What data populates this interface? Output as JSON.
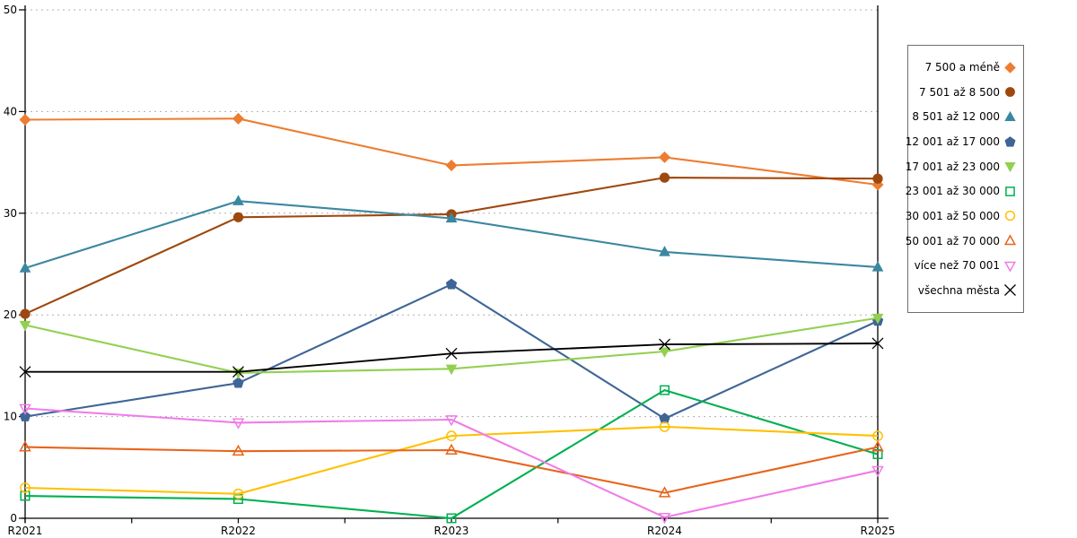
{
  "chart_data": {
    "type": "line",
    "title": "",
    "xlabel": "",
    "ylabel": "",
    "x_categories": [
      "R2021",
      "R2022",
      "R2023",
      "R2024",
      "R2025"
    ],
    "ylim": [
      0,
      50
    ],
    "yticks": [
      0,
      10,
      20,
      30,
      40,
      50
    ],
    "grid": "horizontal-dashed",
    "gridline_color": "#b0b0b0",
    "axis_color": "#000000",
    "legend_position": "right",
    "series": [
      {
        "name": "7 500 a méně",
        "color": "#ED7D31",
        "marker": "diamond",
        "fill": "filled",
        "values": [
          39.2,
          39.3,
          34.7,
          35.5,
          32.8
        ]
      },
      {
        "name": "7 501 až 8 500",
        "color": "#9E480E",
        "marker": "circle",
        "fill": "filled",
        "values": [
          20.1,
          29.6,
          29.9,
          33.5,
          33.4
        ]
      },
      {
        "name": "8 501 až 12 000",
        "color": "#3B87A0",
        "marker": "triangle-up",
        "fill": "filled",
        "values": [
          24.6,
          31.2,
          29.5,
          26.2,
          24.7
        ]
      },
      {
        "name": "12 001 až 17 000",
        "color": "#3E6596",
        "marker": "pentagon",
        "fill": "filled",
        "values": [
          10.0,
          13.3,
          23.0,
          9.8,
          19.4
        ]
      },
      {
        "name": "17 001 až 23 000",
        "color": "#92D050",
        "marker": "triangle-down",
        "fill": "filled",
        "values": [
          19.0,
          14.3,
          14.7,
          16.4,
          19.7
        ]
      },
      {
        "name": "23 001 až 30 000",
        "color": "#00B050",
        "marker": "square",
        "fill": "open",
        "values": [
          2.2,
          1.9,
          0.0,
          12.6,
          6.3
        ]
      },
      {
        "name": "30 001 až 50 000",
        "color": "#FFC000",
        "marker": "circle",
        "fill": "open",
        "values": [
          3.0,
          2.4,
          8.1,
          9.0,
          8.1
        ]
      },
      {
        "name": "50 001 až 70 000",
        "color": "#E8641B",
        "marker": "triangle-up",
        "fill": "open",
        "values": [
          7.0,
          6.6,
          6.7,
          2.5,
          7.0
        ]
      },
      {
        "name": "více než 70 001",
        "color": "#F07CE8",
        "marker": "triangle-down",
        "fill": "open",
        "values": [
          10.8,
          9.4,
          9.7,
          0.1,
          4.7
        ]
      },
      {
        "name": "všechna města",
        "color": "#000000",
        "marker": "x",
        "fill": "open",
        "values": [
          14.4,
          14.4,
          16.2,
          17.1,
          17.2
        ]
      }
    ]
  }
}
